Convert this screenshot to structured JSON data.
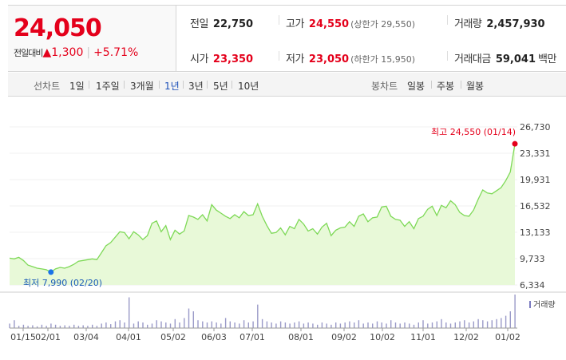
{
  "summary": {
    "price": "24,050",
    "change_label": "전일대비",
    "change_arrow": "▲",
    "change_value": "1,300",
    "change_rate": "+5.71%",
    "prev_close": {
      "label": "전일",
      "value": "22,750"
    },
    "high": {
      "label": "고가",
      "value": "24,550",
      "limit_label": "(상한가 29,550)"
    },
    "volume": {
      "label": "거래량",
      "value": "2,457,930"
    },
    "open": {
      "label": "시가",
      "value": "23,350"
    },
    "low": {
      "label": "저가",
      "value": "23,050",
      "limit_label": "(하한가 15,950)"
    },
    "amount": {
      "label": "거래대금",
      "value": "59,041",
      "unit": "백만"
    }
  },
  "toolbar": {
    "line_chart_label": "선차트",
    "periods": [
      "1일",
      "1주일",
      "3개월",
      "1년",
      "3년",
      "5년",
      "10년"
    ],
    "active_period": "1년",
    "candle_chart_label": "봉차트",
    "candle_periods": [
      "일봉",
      "주봉",
      "월봉"
    ]
  },
  "chart": {
    "y_ticks": [
      "26,730",
      "23,331",
      "19,931",
      "16,532",
      "13,133",
      "9,733",
      "6,334"
    ],
    "x_ticks": [
      "01/15",
      "02/01",
      "03/04",
      "04/01",
      "05/02",
      "06/03",
      "07/01",
      "08/01",
      "09/02",
      "10/02",
      "11/01",
      "12/02",
      "01/02"
    ],
    "max_label": "최고 24,550 (01/14)",
    "min_label": "최저 7,990 (02/20)",
    "volume_label": "거래량",
    "colors": {
      "line": "#7ed957",
      "fill": "#e8f9d8",
      "max_dot": "#e4001b",
      "min_dot": "#1a73e8",
      "volume": "#9a9ac8"
    }
  },
  "chart_data": {
    "type": "area",
    "ylim": [
      6334,
      26730
    ],
    "x_ticks": [
      "01/15",
      "02/01",
      "03/04",
      "04/01",
      "05/02",
      "06/03",
      "07/01",
      "08/01",
      "09/02",
      "10/02",
      "11/01",
      "12/02",
      "01/02"
    ],
    "values": [
      9800,
      9700,
      9900,
      9500,
      8900,
      8700,
      8500,
      8400,
      8300,
      7990,
      8400,
      8600,
      8500,
      8700,
      9000,
      9400,
      9500,
      9600,
      9700,
      9600,
      10500,
      11400,
      11800,
      12500,
      13200,
      13100,
      12300,
      13200,
      12800,
      12200,
      12700,
      14300,
      14600,
      13200,
      14000,
      12200,
      13400,
      12900,
      13300,
      15300,
      15100,
      14800,
      15400,
      14600,
      16700,
      16000,
      15600,
      15200,
      14900,
      15400,
      15000,
      15800,
      15300,
      15400,
      16800,
      15200,
      14000,
      13000,
      13100,
      13700,
      12800,
      13900,
      13600,
      14800,
      14200,
      13300,
      13600,
      12900,
      13800,
      14300,
      12700,
      13400,
      13700,
      13800,
      14500,
      13900,
      15200,
      15500,
      14500,
      15000,
      15100,
      16400,
      16500,
      15200,
      14800,
      14700,
      13900,
      14500,
      13600,
      14900,
      15200,
      16100,
      16500,
      15300,
      16600,
      16300,
      17200,
      16700,
      15700,
      15300,
      15200,
      16000,
      17400,
      18600,
      18200,
      18100,
      18500,
      18900,
      19800,
      20900,
      24550
    ],
    "max": {
      "label": "최고 24,550 (01/14)",
      "value": 24550
    },
    "min": {
      "label": "최저 7,990 (02/20)",
      "value": 7990
    },
    "volume": [
      8,
      14,
      4,
      6,
      4,
      5,
      3,
      6,
      4,
      8,
      6,
      4,
      5,
      4,
      6,
      4,
      5,
      4,
      6,
      4,
      8,
      10,
      7,
      12,
      14,
      10,
      55,
      8,
      12,
      10,
      6,
      8,
      14,
      12,
      10,
      8,
      16,
      10,
      18,
      35,
      30,
      14,
      12,
      10,
      12,
      10,
      8,
      18,
      12,
      10,
      8,
      14,
      10,
      12,
      42,
      16,
      12,
      10,
      8,
      12,
      10,
      8,
      10,
      12,
      8,
      10,
      8,
      6,
      10,
      8,
      6,
      10,
      8,
      10,
      12,
      10,
      14,
      8,
      10,
      8,
      12,
      10,
      8,
      14,
      10,
      8,
      10,
      8,
      6,
      10,
      14,
      8,
      10,
      12,
      16,
      10,
      8,
      10,
      12,
      14,
      10,
      12,
      16,
      14,
      12,
      14,
      16,
      18,
      22,
      30,
      60
    ]
  }
}
